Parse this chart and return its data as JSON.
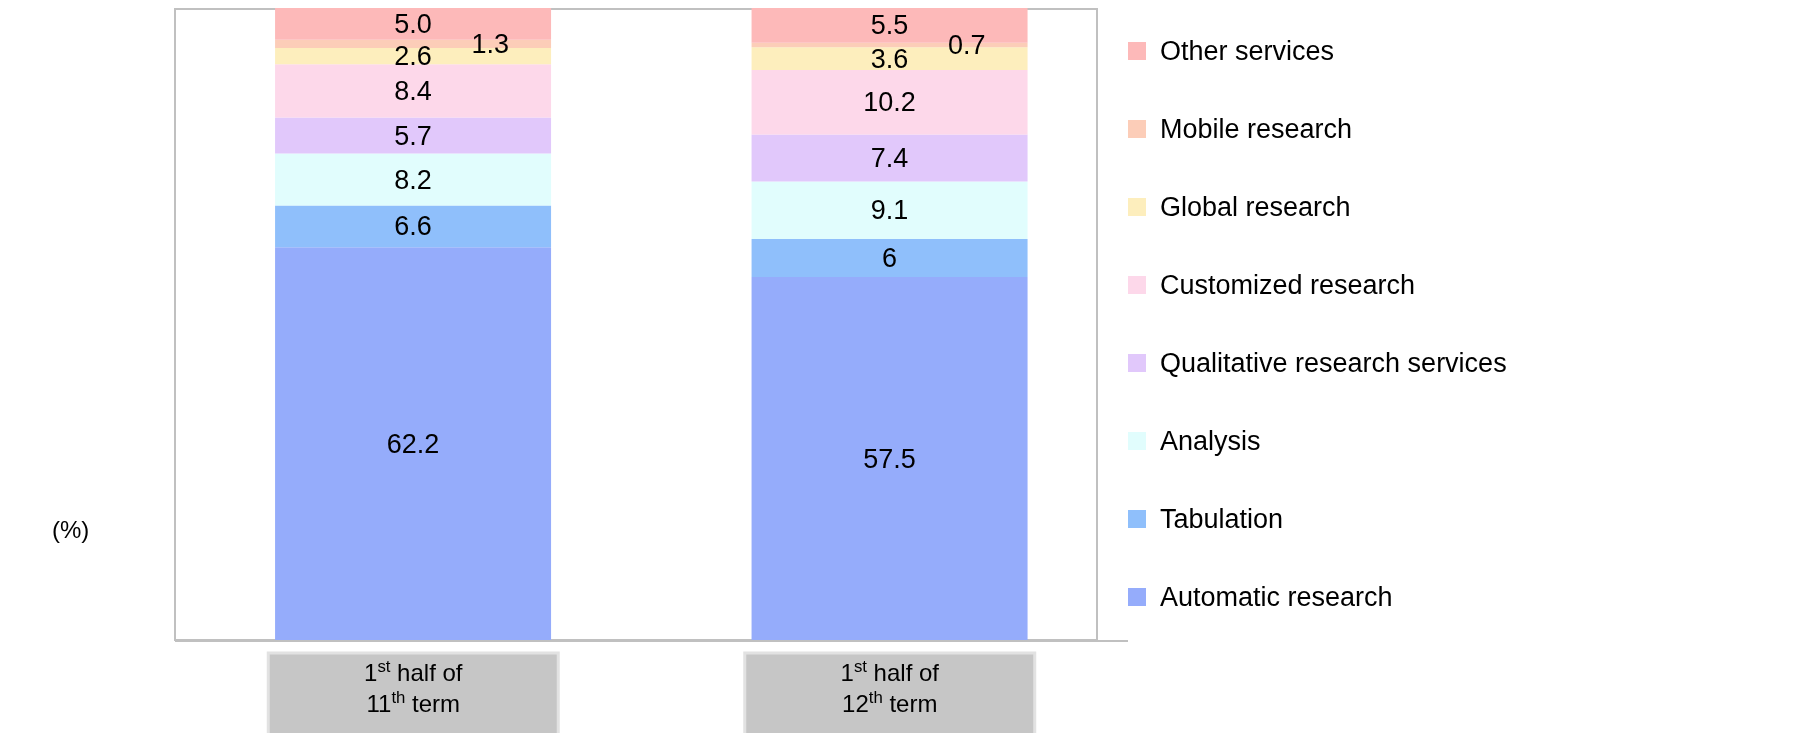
{
  "chart_data": {
    "type": "bar",
    "stacked": true,
    "legend": "right",
    "ylabel": "(%)",
    "categories": [
      "1$^{st}$ half of\n11$^{th}$ term",
      "1$^{st}$ half of\n12$^{th}$ term"
    ],
    "series": [
      {
        "name": "Automatic research",
        "color": "#95acfb",
        "values": [
          62.2,
          57.5
        ],
        "value_labels": [
          "62.2",
          "57.5"
        ]
      },
      {
        "name": "Tabulation",
        "color": "#8fbffb",
        "values": [
          6.6,
          6
        ],
        "value_labels": [
          "6.6",
          "6"
        ]
      },
      {
        "name": "Analysis",
        "color": "#e1fdfd",
        "values": [
          8.2,
          9.1
        ],
        "value_labels": [
          "8.2",
          "9.1"
        ]
      },
      {
        "name": "Qualitative research services",
        "color": "#e1c8fb",
        "values": [
          5.7,
          7.4
        ],
        "value_labels": [
          "5.7",
          "7.4"
        ]
      },
      {
        "name": "Customized research",
        "color": "#fdd8ea",
        "values": [
          8.4,
          10.2
        ],
        "value_labels": [
          "8.4",
          "10.2"
        ]
      },
      {
        "name": "Global research",
        "color": "#fdeebd",
        "values": [
          2.6,
          3.6
        ],
        "value_labels": [
          "2.6",
          "3.6"
        ]
      },
      {
        "name": "Mobile research",
        "color": "#fccdb8",
        "values": [
          1.3,
          0.7
        ],
        "value_labels": [
          "1.3",
          "0.7"
        ]
      },
      {
        "name": "Other services",
        "color": "#fdb9b9",
        "values": [
          5.0,
          5.5
        ],
        "value_labels": [
          "5.0",
          "5.5"
        ]
      }
    ]
  }
}
